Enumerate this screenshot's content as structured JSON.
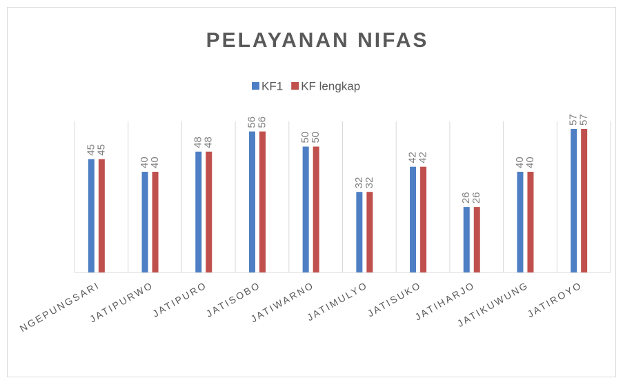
{
  "chart_data": {
    "type": "bar",
    "title": "PELAYANAN NIFAS",
    "categories": [
      "NGEPUNGSARI",
      "JATIPURWO",
      "JATIPURO",
      "JATISOBO",
      "JATIWARNO",
      "JATIMULYO",
      "JATISUKO",
      "JATIHARJO",
      "JATIKUWUNG",
      "JATIROYO"
    ],
    "series": [
      {
        "name": "KF1",
        "color": "#4e7fc4",
        "values": [
          45,
          40,
          48,
          56,
          50,
          32,
          42,
          26,
          40,
          57
        ]
      },
      {
        "name": "KF lengkap",
        "color": "#c0504d",
        "values": [
          45,
          40,
          48,
          56,
          50,
          32,
          42,
          26,
          40,
          57
        ]
      }
    ],
    "ylim": [
      0,
      60
    ],
    "legend": "top"
  }
}
